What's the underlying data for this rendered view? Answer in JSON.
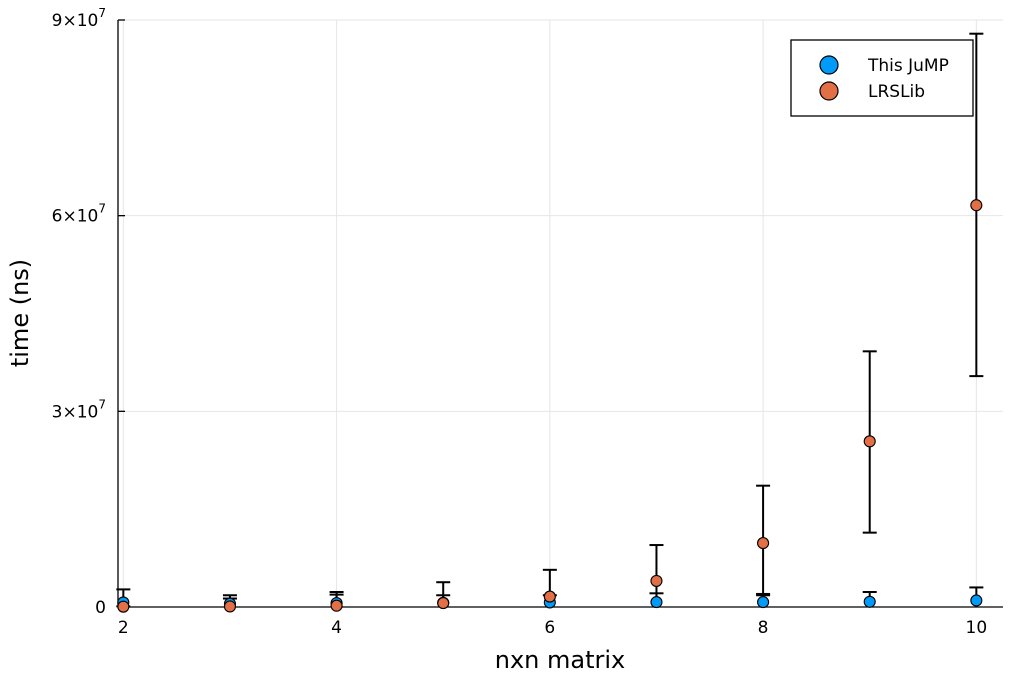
{
  "chart_data": {
    "type": "scatter",
    "xlabel": "nxn matrix",
    "ylabel": "time (ns)",
    "xlim": [
      1.95,
      10.25
    ],
    "ylim": [
      0,
      90000000
    ],
    "x_ticks": [
      2,
      4,
      6,
      8,
      10
    ],
    "x_tick_labels": [
      "2",
      "4",
      "6",
      "8",
      "10"
    ],
    "y_ticks": [
      0,
      30000000,
      60000000,
      90000000
    ],
    "y_tick_labels": [
      {
        "base": "0",
        "exp": ""
      },
      {
        "base": "3×10",
        "exp": "7"
      },
      {
        "base": "6×10",
        "exp": "7"
      },
      {
        "base": "9×10",
        "exp": "7"
      }
    ],
    "grid": true,
    "legend_position": "top-right",
    "series": [
      {
        "name": "This JuMP",
        "color": "#009AF9",
        "points": [
          {
            "x": 2,
            "y": 700000,
            "lo": 0,
            "hi": 2700000
          },
          {
            "x": 3,
            "y": 500000,
            "lo": 0,
            "hi": 1800000
          },
          {
            "x": 4,
            "y": 600000,
            "lo": 0,
            "hi": 2300000
          },
          {
            "x": 5,
            "y": 650000,
            "lo": 0,
            "hi": 1800000
          },
          {
            "x": 6,
            "y": 700000,
            "lo": 0,
            "hi": 1800000
          },
          {
            "x": 7,
            "y": 750000,
            "lo": 0,
            "hi": 2100000
          },
          {
            "x": 8,
            "y": 750000,
            "lo": 0,
            "hi": 2000000
          },
          {
            "x": 9,
            "y": 800000,
            "lo": 0,
            "hi": 2300000
          },
          {
            "x": 10,
            "y": 1000000,
            "lo": 0,
            "hi": 3000000
          }
        ]
      },
      {
        "name": "LRSLib",
        "color": "#E26F46",
        "points": [
          {
            "x": 2,
            "y": 50000,
            "lo": 0,
            "hi": 100000
          },
          {
            "x": 3,
            "y": 80000,
            "lo": 0,
            "hi": 1300000
          },
          {
            "x": 4,
            "y": 200000,
            "lo": 0,
            "hi": 1900000
          },
          {
            "x": 5,
            "y": 600000,
            "lo": 0,
            "hi": 3800000
          },
          {
            "x": 6,
            "y": 1600000,
            "lo": 0,
            "hi": 5700000
          },
          {
            "x": 7,
            "y": 4000000,
            "lo": 0,
            "hi": 9500000
          },
          {
            "x": 8,
            "y": 9800000,
            "lo": 1800000,
            "hi": 18600000
          },
          {
            "x": 9,
            "y": 25400000,
            "lo": 11400000,
            "hi": 39200000
          },
          {
            "x": 10,
            "y": 61600000,
            "lo": 35400000,
            "hi": 87900000
          }
        ]
      }
    ]
  }
}
